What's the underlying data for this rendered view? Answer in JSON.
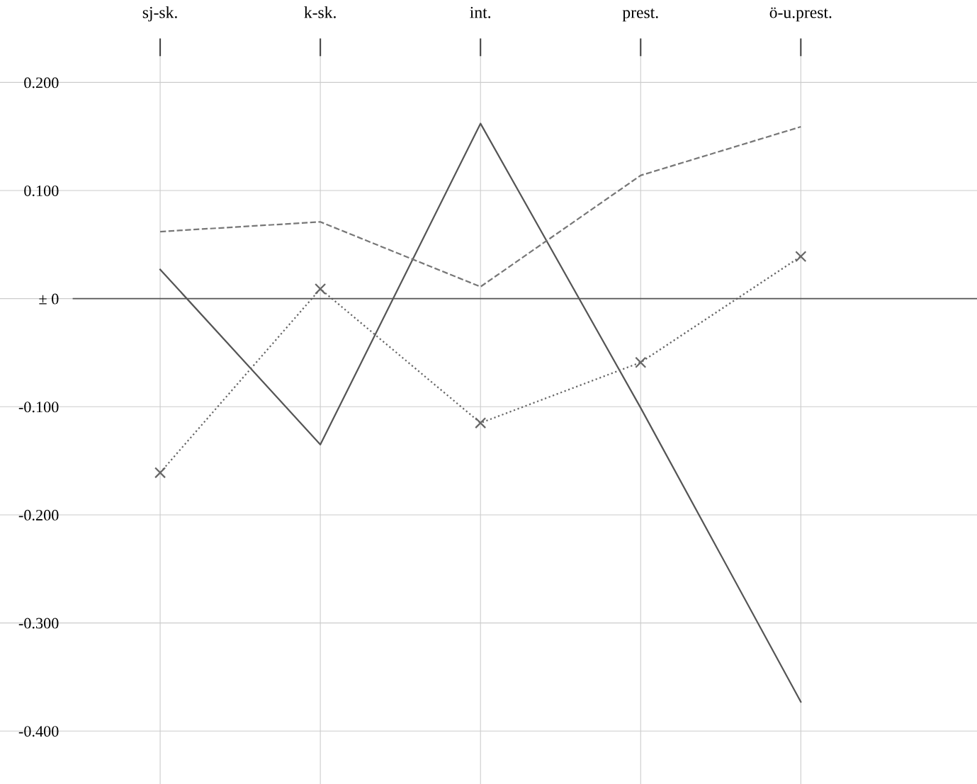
{
  "chart_data": {
    "type": "line",
    "categories": [
      "sj-sk.",
      "k-sk.",
      "int.",
      "prest.",
      "ö-u.prest."
    ],
    "series": [
      {
        "color": "#555555",
        "line_style": "solid",
        "marker": "none",
        "values": [
          0.027,
          -0.135,
          0.162,
          -0.101,
          -0.373
        ]
      },
      {
        "color": "#777777",
        "line_style": "dashed",
        "marker": "none",
        "values": [
          0.062,
          0.071,
          0.011,
          0.114,
          0.159
        ]
      },
      {
        "color": "#666666",
        "line_style": "dotted",
        "marker": "cross",
        "values": [
          -0.161,
          0.009,
          -0.115,
          -0.059,
          0.039
        ]
      }
    ],
    "ylim": [
      -0.449,
      0.24
    ],
    "yticks": [
      {
        "value": 0.2,
        "label": "0.200"
      },
      {
        "value": 0.1,
        "label": "0.100"
      },
      {
        "value": 0,
        "label": "± 0"
      },
      {
        "value": -0.1,
        "label": "-0.100"
      },
      {
        "value": -0.2,
        "label": "-0.200"
      },
      {
        "value": -0.3,
        "label": "-0.300"
      },
      {
        "value": -0.4,
        "label": "-0.400"
      }
    ],
    "ref_lines": [
      {
        "axis": "y",
        "value": 0,
        "color": "#555555"
      }
    ],
    "grid": true
  }
}
